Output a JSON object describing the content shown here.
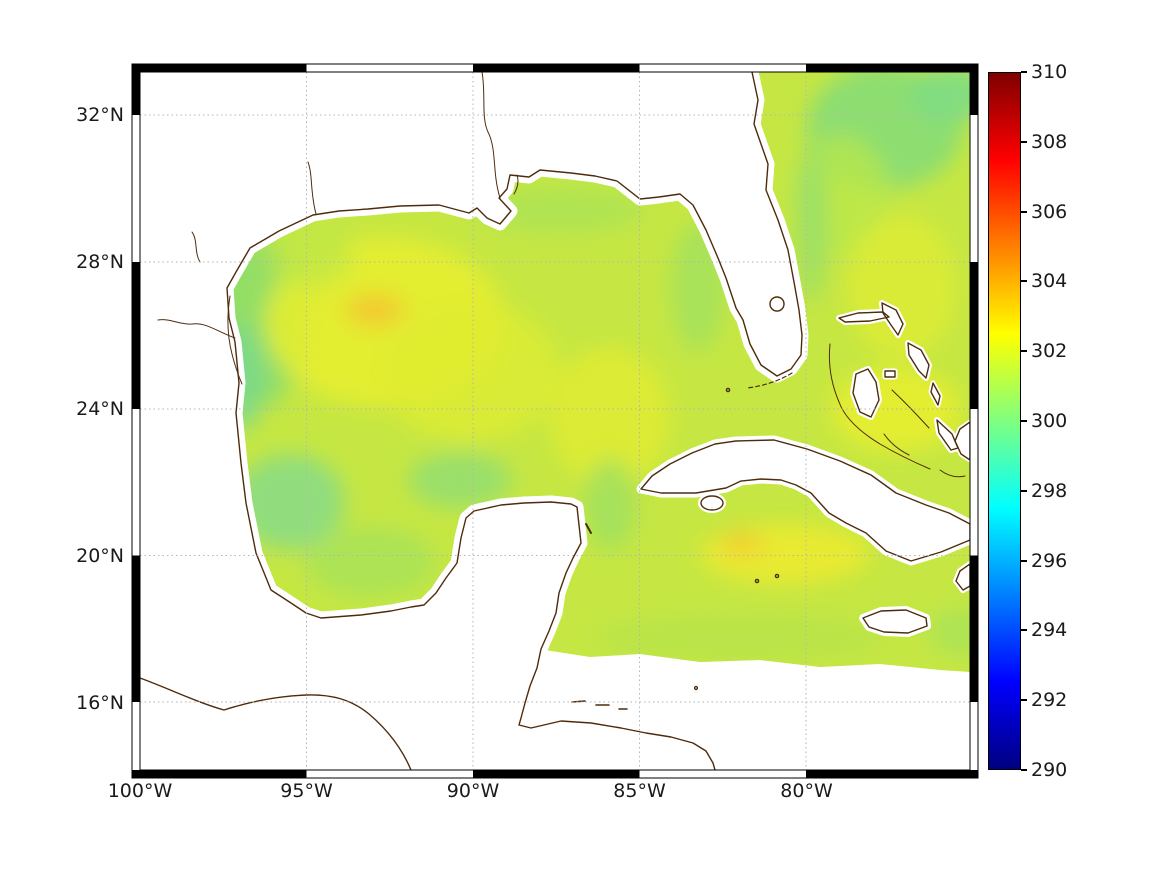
{
  "title": "",
  "map": {
    "x_tick_labels": [
      "100°W",
      "95°W",
      "90°W",
      "85°W",
      "80°W"
    ],
    "y_tick_labels": [
      "32°N",
      "28°N",
      "24°N",
      "20°N",
      "16°N"
    ],
    "features": [
      "Gulf of Mexico",
      "Atlantic Ocean",
      "Caribbean Sea",
      "US Gulf Coast",
      "Florida",
      "Mexico",
      "Yucatan Peninsula",
      "Cuba",
      "Bahamas",
      "Jamaica",
      "Honduras coast"
    ],
    "no_data_color": "#ffffff"
  },
  "colorbar": {
    "tick_labels": [
      "310",
      "308",
      "306",
      "304",
      "302",
      "300",
      "298",
      "296",
      "294",
      "292",
      "290"
    ],
    "min": 290,
    "max": 310,
    "colormap": "jet"
  },
  "colors": {
    "field_base": "#c6e743",
    "coastline": "#4f2b0d",
    "gridline": "#b5b5b5",
    "frame": "#000000",
    "background": "#ffffff"
  },
  "chart_data": {
    "type": "heatmap",
    "title": "",
    "xlabel": "",
    "ylabel": "",
    "x_ticks_deg_west": [
      100,
      95,
      90,
      85,
      80
    ],
    "y_ticks_deg_north": [
      32,
      28,
      24,
      20,
      16
    ],
    "x_range_deg_west": [
      100,
      75.1
    ],
    "y_range_deg_north": [
      14.2,
      33.2
    ],
    "grid": "dotted",
    "color_scale": {
      "colormap": "jet",
      "vmin": 290,
      "vmax": 310,
      "tick_step": 2
    },
    "value_range_visible": [
      299,
      303
    ],
    "regions_approx_values": [
      {
        "region": "northwest Gulf shelf",
        "lon_w": 96.5,
        "lat_n": 27.5,
        "value": 300.0
      },
      {
        "region": "west Gulf nearshore (Texas/Mexico coast)",
        "lon_w": 97,
        "lat_n": 25,
        "value": 299.5
      },
      {
        "region": "central Gulf of Mexico",
        "lon_w": 92.5,
        "lat_n": 25.5,
        "value": 301.8
      },
      {
        "region": "warm patch west-central Gulf",
        "lon_w": 93,
        "lat_n": 26.6,
        "value": 302.6
      },
      {
        "region": "north-central Gulf shelf",
        "lon_w": 88,
        "lat_n": 29.3,
        "value": 300.6
      },
      {
        "region": "Bay of Campeche",
        "lon_w": 93.3,
        "lat_n": 19.6,
        "value": 300.6
      },
      {
        "region": "shelf north of Yucatan",
        "lon_w": 90.4,
        "lat_n": 22.1,
        "value": 299.8
      },
      {
        "region": "Loop Current / southeast Gulf",
        "lon_w": 86,
        "lat_n": 24,
        "value": 301.6
      },
      {
        "region": "west Florida shelf",
        "lon_w": 83.3,
        "lat_n": 27.3,
        "value": 300.4
      },
      {
        "region": "Atlantic northeast corner",
        "lon_w": 77.8,
        "lat_n": 31.7,
        "value": 300.0
      },
      {
        "region": "Great Bahama Bank",
        "lon_w": 77.3,
        "lat_n": 24.3,
        "value": 301.8
      },
      {
        "region": "Caribbean south of Cuba",
        "lon_w": 80.5,
        "lat_n": 20.1,
        "value": 301.9
      },
      {
        "region": "southern data boundary strip",
        "lon_w": 84,
        "lat_n": 17.8,
        "value": 300.8
      }
    ],
    "no_data_regions": [
      "land areas (white)",
      "west of ~87.5°W south of ~18°N",
      "coastal stair-step buffer along shorelines"
    ]
  }
}
